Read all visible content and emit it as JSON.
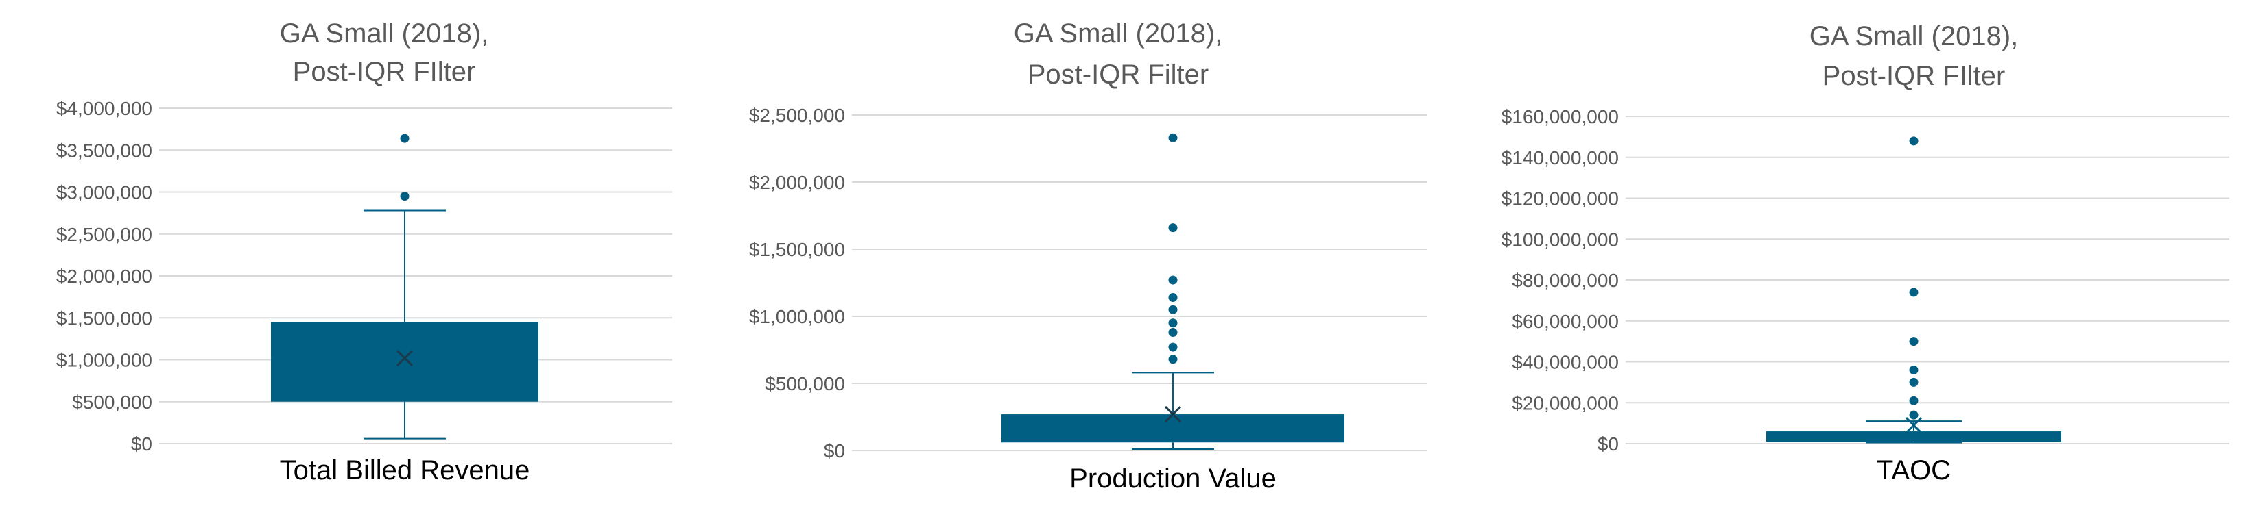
{
  "colors": {
    "box": "#005f83",
    "text": "#595959",
    "grid": "#d9d9d9"
  },
  "chart_data": [
    {
      "type": "box",
      "title": [
        "GA Small (2018),",
        "Post-IQR FIlter"
      ],
      "xlabel": "Total Billed Revenue",
      "ylim": [
        0,
        4000000
      ],
      "yticks": [
        0,
        500000,
        1000000,
        1500000,
        2000000,
        2500000,
        3000000,
        3500000,
        4000000
      ],
      "ytick_labels": [
        "$0",
        "$500,000",
        "$1,000,000",
        "$1,500,000",
        "$2,000,000",
        "$2,500,000",
        "$3,000,000",
        "$3,500,000",
        "$4,000,000"
      ],
      "box": {
        "q1": 500000,
        "median": 500000,
        "q3": 1450000,
        "mean": 1020000,
        "whisker_low": 60000,
        "whisker_high": 2780000
      },
      "outliers": [
        2950000,
        3640000
      ]
    },
    {
      "type": "box",
      "title": [
        "GA Small (2018),",
        "Post-IQR Filter"
      ],
      "xlabel": "Production Value",
      "ylim": [
        0,
        2500000
      ],
      "yticks": [
        0,
        500000,
        1000000,
        1500000,
        2000000,
        2500000
      ],
      "ytick_labels": [
        "$0",
        "$500,000",
        "$1,000,000",
        "$1,500,000",
        "$2,000,000",
        "$2,500,000"
      ],
      "box": {
        "q1": 60000,
        "median": 60000,
        "q3": 270000,
        "mean": 270000,
        "whisker_low": 10000,
        "whisker_high": 580000
      },
      "outliers": [
        680000,
        770000,
        880000,
        950000,
        1050000,
        1140000,
        1270000,
        1660000,
        2330000
      ]
    },
    {
      "type": "box",
      "title": [
        "GA Small (2018),",
        "Post-IQR FIlter"
      ],
      "xlabel": "TAOC",
      "ylim": [
        0,
        160000000
      ],
      "yticks": [
        0,
        20000000,
        40000000,
        60000000,
        80000000,
        100000000,
        120000000,
        140000000,
        160000000
      ],
      "ytick_labels": [
        "$0",
        "$20,000,000",
        "$40,000,000",
        "$60,000,000",
        "$80,000,000",
        "$100,000,000",
        "$120,000,000",
        "$140,000,000",
        "$160,000,000"
      ],
      "box": {
        "q1": 1000000,
        "median": 1000000,
        "q3": 6000000,
        "mean": 9000000,
        "whisker_low": 500000,
        "whisker_high": 11000000
      },
      "outliers": [
        14000000,
        21000000,
        30000000,
        36000000,
        50000000,
        74000000,
        148000000
      ]
    }
  ]
}
